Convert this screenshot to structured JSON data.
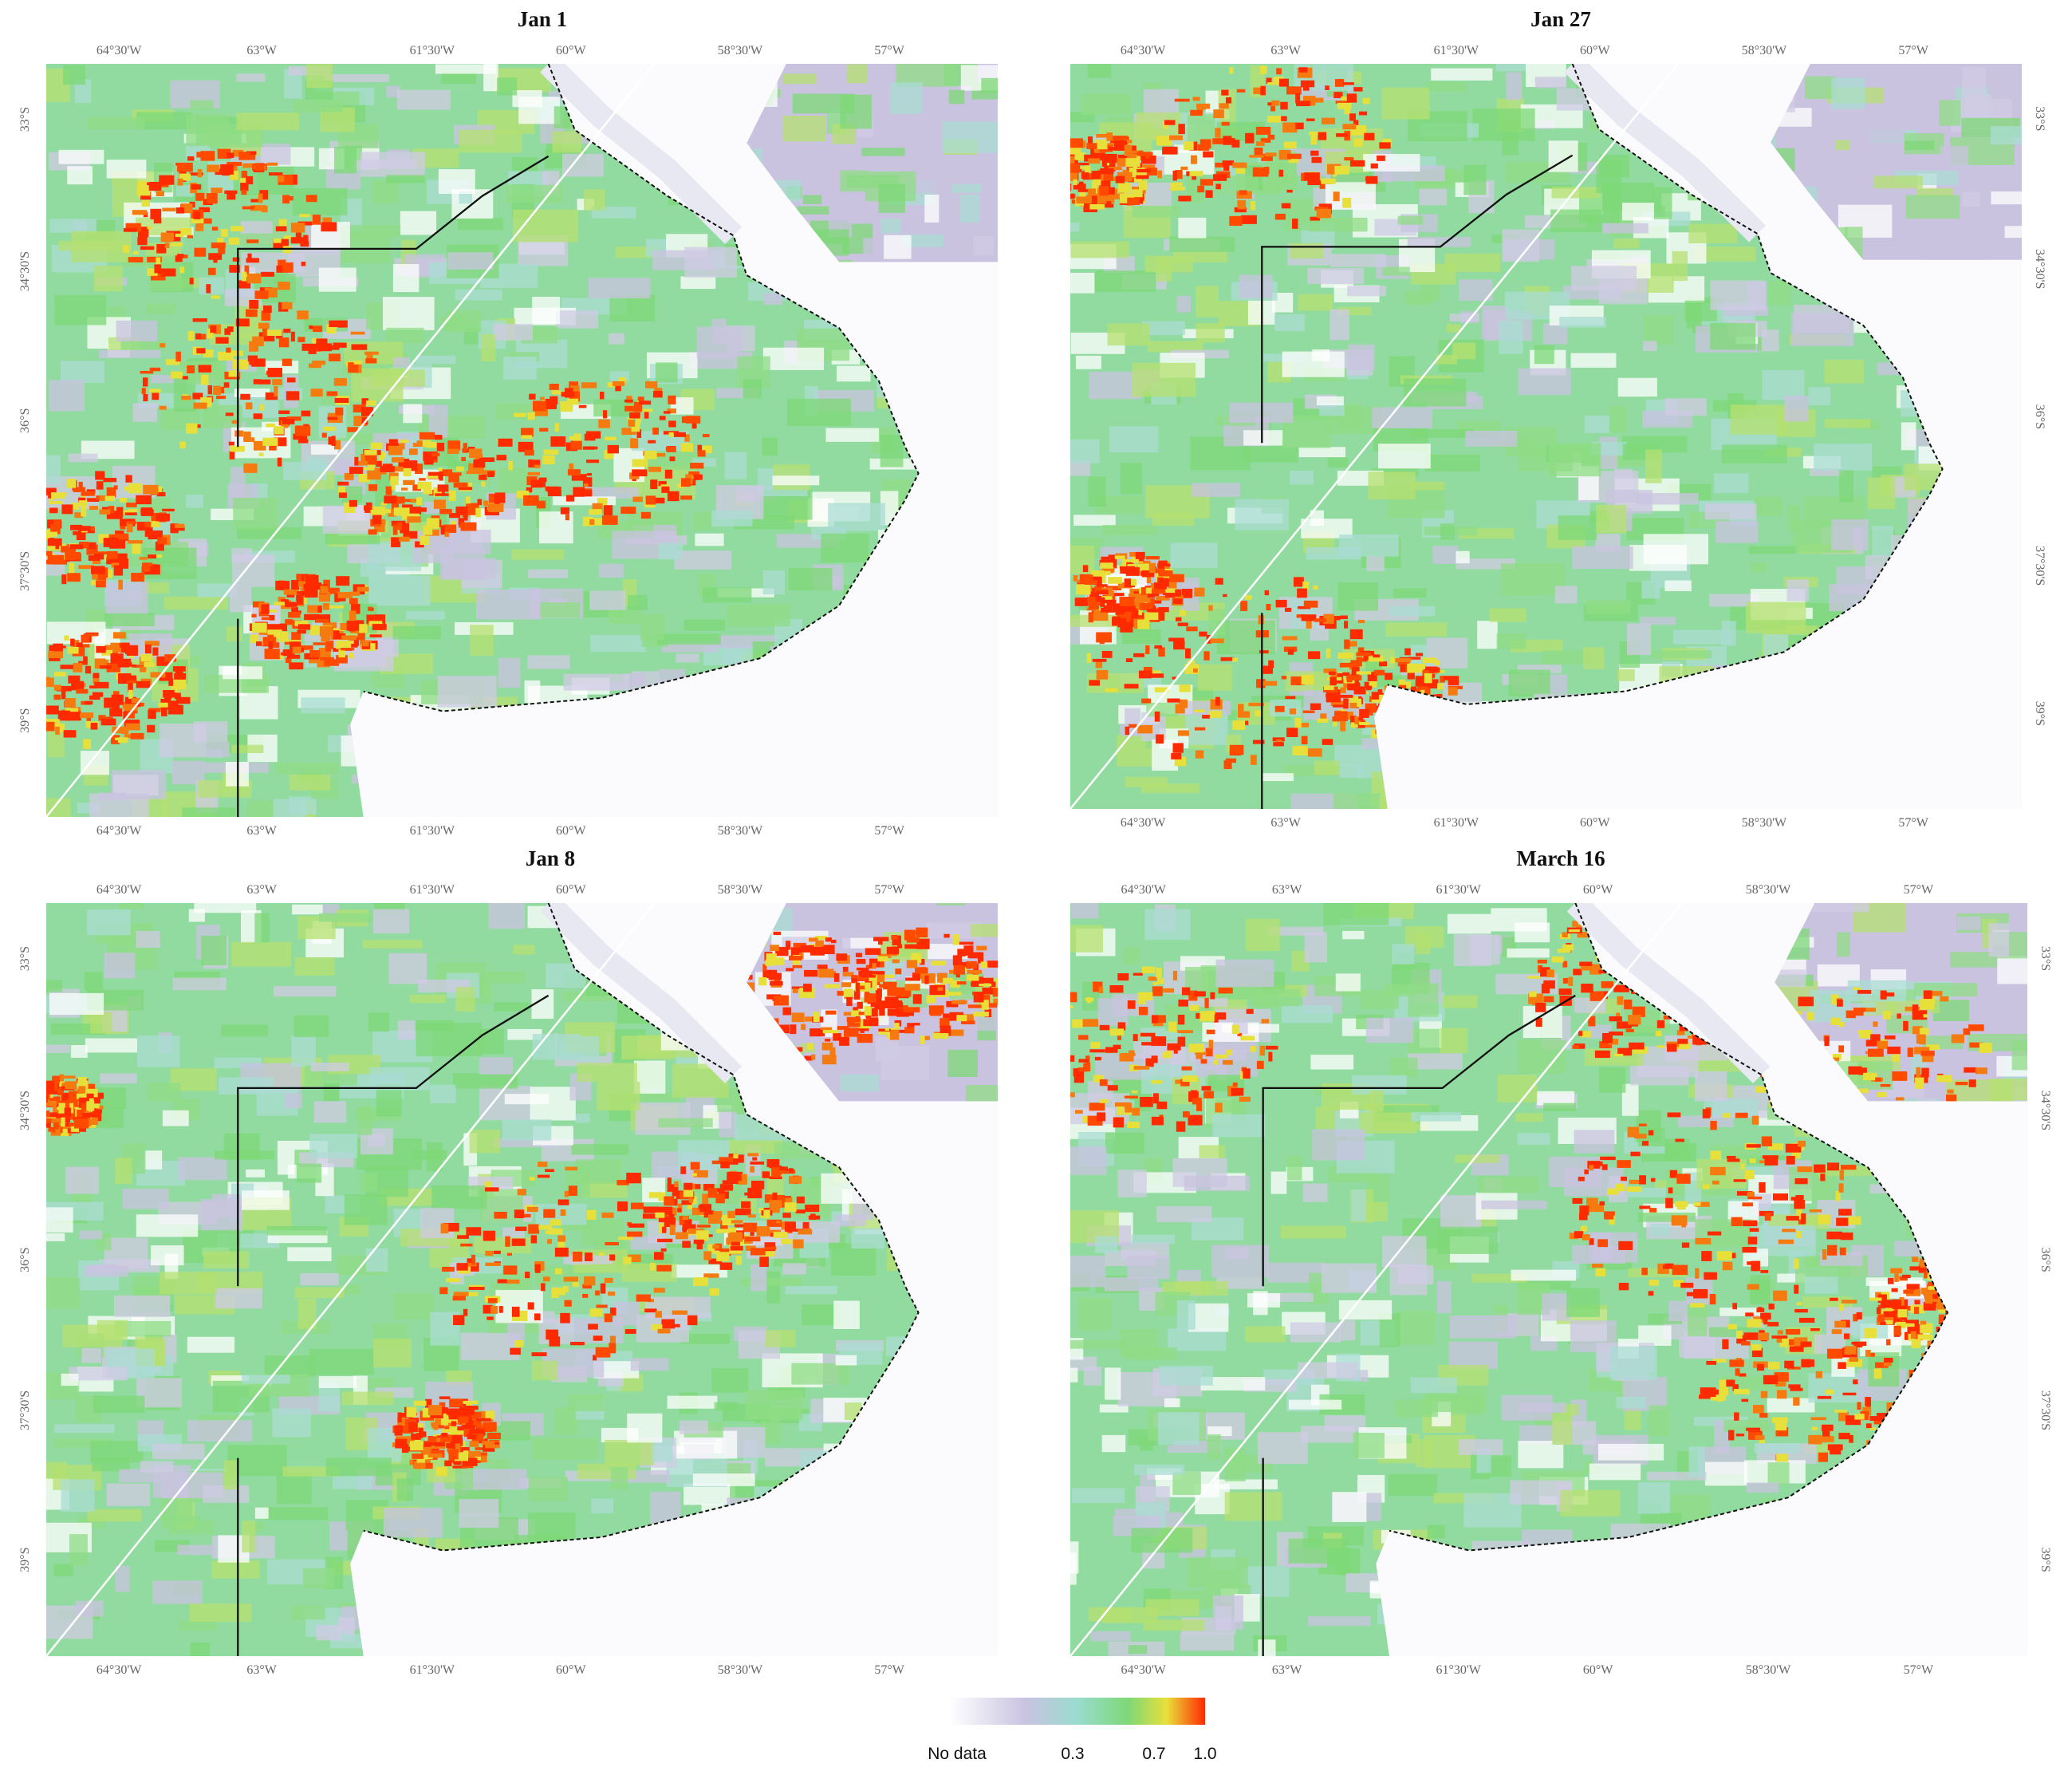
{
  "panels": [
    {
      "title": "Jan 1",
      "lon_labels": [
        "64°30'W",
        "63°W",
        "61°30'W",
        "60°W",
        "58°30'W",
        "57°W"
      ],
      "lat_labels": [
        "33°S",
        "34°30'S",
        "36°S",
        "37°30'S",
        "39°S"
      ]
    },
    {
      "title": "Jan 27",
      "lon_labels": [
        "64°30'W",
        "63°W",
        "61°30'W",
        "60°W",
        "58°30'W",
        "57°W"
      ],
      "lat_labels": [
        "33°S",
        "34°30'S",
        "36°S",
        "37°30'S",
        "39°S"
      ]
    },
    {
      "title": "Jan 8",
      "lon_labels": [
        "64°30'W",
        "63°W",
        "61°30'W",
        "60°W",
        "58°30'W",
        "57°W"
      ],
      "lat_labels": [
        "33°S",
        "34°30'S",
        "36°S",
        "37°30'S",
        "39°S"
      ]
    },
    {
      "title": "March 16",
      "lon_labels": [
        "64°30'W",
        "63°W",
        "61°30'W",
        "60°W",
        "58°30'W",
        "57°W"
      ],
      "lat_labels": [
        "33°S",
        "34°30'S",
        "36°S",
        "37°30'S",
        "39°S"
      ]
    }
  ],
  "legend": {
    "labels": [
      "No data",
      "0.3",
      "0.7",
      "1.0"
    ]
  }
}
